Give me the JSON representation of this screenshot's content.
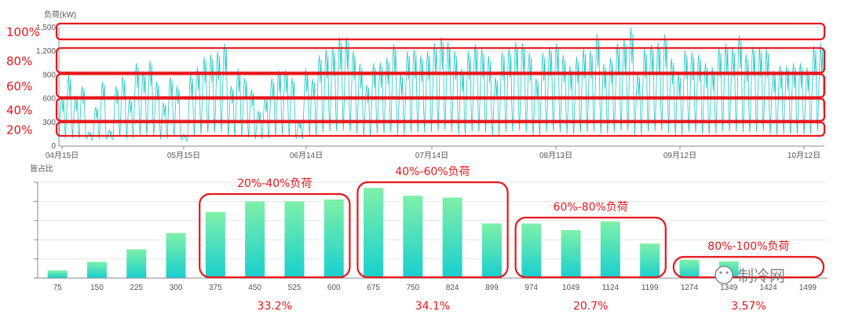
{
  "colors": {
    "accent": "#1fc6c7",
    "highlight_red": "#e8161b",
    "bar_top": "#7ff0a8",
    "bar_bottom": "#18cfcf"
  },
  "chart_data": [
    {
      "type": "line",
      "ylabel": "负荷(kW)",
      "yticks": [
        "0",
        "300",
        "600",
        "900",
        "1,200",
        "1,500"
      ],
      "ylim": [
        0,
        1500
      ],
      "xticks": [
        "04月15日",
        "05月15日",
        "06月14日",
        "07月14日",
        "08月13日",
        "09月12日",
        "10月12日"
      ],
      "xrange": [
        "04月15日",
        "10月15日"
      ],
      "grid": true,
      "series_description": "hourly load, daily peak values",
      "series": [
        {
          "values": [
            620,
            900,
            640,
            760,
            180,
            500,
            820,
            200,
            760,
            880,
            600,
            1050,
            950,
            1080,
            820,
            550,
            870,
            760,
            150,
            900,
            1000,
            1130,
            1160,
            1200,
            1300,
            760,
            980,
            860,
            720,
            450,
            620,
            860,
            960,
            960,
            860,
            320,
            980,
            850,
            1150,
            1220,
            1250,
            1380,
            1380,
            1200,
            1040,
            780,
            1050,
            1060,
            1120,
            1290,
            920,
            1200,
            1220,
            1150,
            1200,
            1300,
            1380,
            1320,
            1200,
            980,
            1200,
            1290,
            1230,
            1140,
            870,
            1190,
            1230,
            1320,
            1300,
            1180,
            860,
            1180,
            1260,
            1300,
            1150,
            1010,
            1130,
            1230,
            1210,
            1420,
            1040,
            1120,
            1300,
            1350,
            1500,
            920,
            1230,
            1280,
            1310,
            1420,
            1110,
            910,
            1210,
            1190,
            1160,
            1050,
            1000,
            1240,
            1300,
            1240,
            1400,
            1160,
            1260,
            1250,
            1230,
            960,
            1020,
            1020,
            1050,
            1050,
            990,
            1270,
            1300
          ]
        }
      ],
      "annotations": [
        {
          "label": "100%",
          "band": [
            1350,
            1550
          ]
        },
        {
          "label": "80%",
          "band": [
            930,
            1240
          ]
        },
        {
          "label": "60%",
          "band": [
            620,
            910
          ]
        },
        {
          "label": "40%",
          "band": [
            320,
            600
          ]
        },
        {
          "label": "20%",
          "band": [
            130,
            300
          ]
        }
      ]
    },
    {
      "type": "bar",
      "ylabel": "皆占比",
      "categories": [
        "75",
        "150",
        "225",
        "300",
        "375",
        "450",
        "525",
        "600",
        "675",
        "750",
        "824",
        "899",
        "974",
        "1049",
        "1124",
        "1199",
        "1274",
        "1349",
        "1424",
        "1499"
      ],
      "values": [
        1.6,
        3.4,
        6.0,
        9.4,
        13.8,
        16.0,
        16.0,
        16.4,
        18.8,
        17.2,
        16.8,
        11.4,
        11.4,
        10.0,
        11.8,
        7.2,
        3.8,
        3.5,
        0.0,
        0.0
      ],
      "groups": [
        {
          "label": "20%-40%负荷",
          "share": "33.2%"
        },
        {
          "label": "40%-60%负荷",
          "share": "34.1%"
        },
        {
          "label": "60%-80%负荷",
          "share": "20.7%"
        },
        {
          "label": "80%-100%负荷",
          "share": "3.57%"
        }
      ]
    }
  ],
  "watermark": {
    "text": "制冷网"
  }
}
